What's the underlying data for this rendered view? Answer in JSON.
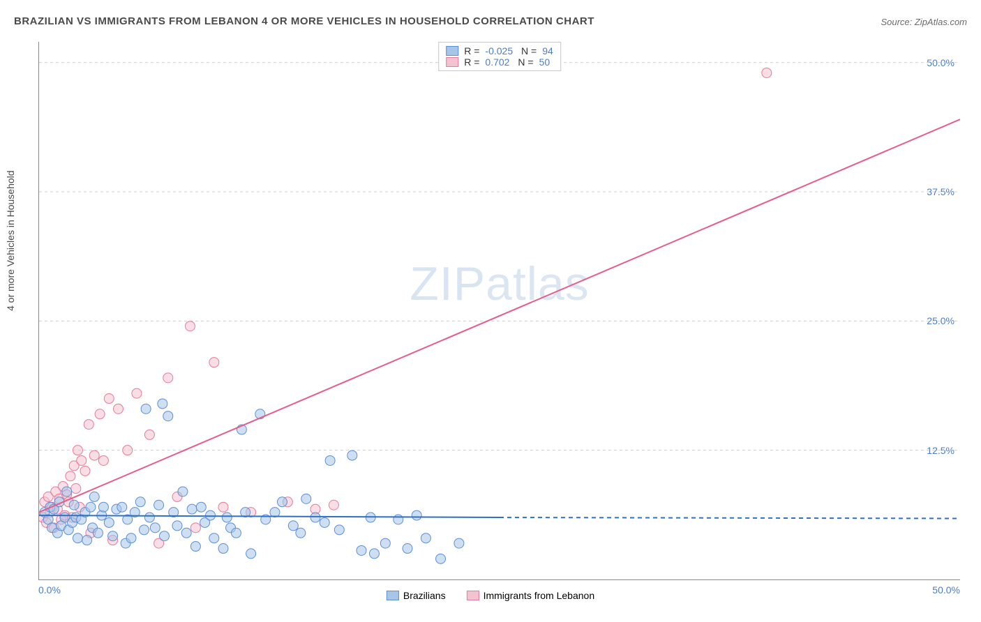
{
  "title": "BRAZILIAN VS IMMIGRANTS FROM LEBANON 4 OR MORE VEHICLES IN HOUSEHOLD CORRELATION CHART",
  "source": "Source: ZipAtlas.com",
  "ylabel": "4 or more Vehicles in Household",
  "watermark_a": "ZIP",
  "watermark_b": "atlas",
  "xlim": [
    0,
    50
  ],
  "ylim": [
    0,
    52
  ],
  "yticks": [
    {
      "v": 12.5,
      "label": "12.5%"
    },
    {
      "v": 25.0,
      "label": "25.0%"
    },
    {
      "v": 37.5,
      "label": "37.5%"
    },
    {
      "v": 50.0,
      "label": "50.0%"
    }
  ],
  "xtick_left": "0.0%",
  "xtick_right": "50.0%",
  "colors": {
    "blue_fill": "#a8c5e8",
    "blue_stroke": "#5b8fd6",
    "blue_line": "#2f6fc4",
    "pink_fill": "#f4c3d0",
    "pink_stroke": "#e67a9b",
    "pink_line": "#e75d87",
    "grid": "#d0d0d0",
    "axis": "#888888",
    "text": "#4a4a4a",
    "value_text": "#4a7ec9"
  },
  "marker_radius": 7,
  "marker_opacity": 0.55,
  "line_width": 2,
  "stats": [
    {
      "swatch": "blue",
      "r": "-0.025",
      "n": "94"
    },
    {
      "swatch": "pink",
      "r": "0.702",
      "n": "50"
    }
  ],
  "legend_bottom": [
    {
      "swatch": "blue",
      "label": "Brazilians"
    },
    {
      "swatch": "pink",
      "label": "Immigrants from Lebanon"
    }
  ],
  "blue_line": {
    "x1": 0,
    "y1": 6.2,
    "x2": 25,
    "y2": 6.0,
    "ext_x2": 50,
    "ext_y2": 5.9
  },
  "pink_line": {
    "x1": 0,
    "y1": 6.5,
    "x2": 50,
    "y2": 44.5
  },
  "blue_points": [
    [
      0.3,
      6.5
    ],
    [
      0.5,
      5.8
    ],
    [
      0.6,
      7.0
    ],
    [
      0.7,
      5.0
    ],
    [
      0.8,
      6.8
    ],
    [
      1.0,
      4.5
    ],
    [
      1.1,
      7.5
    ],
    [
      1.2,
      5.2
    ],
    [
      1.4,
      6.0
    ],
    [
      1.5,
      8.5
    ],
    [
      1.6,
      4.8
    ],
    [
      1.8,
      5.5
    ],
    [
      1.9,
      7.2
    ],
    [
      2.0,
      6.0
    ],
    [
      2.1,
      4.0
    ],
    [
      2.3,
      5.8
    ],
    [
      2.5,
      6.5
    ],
    [
      2.6,
      3.8
    ],
    [
      2.8,
      7.0
    ],
    [
      2.9,
      5.0
    ],
    [
      3.0,
      8.0
    ],
    [
      3.2,
      4.5
    ],
    [
      3.4,
      6.2
    ],
    [
      3.5,
      7.0
    ],
    [
      3.8,
      5.5
    ],
    [
      4.0,
      4.2
    ],
    [
      4.2,
      6.8
    ],
    [
      4.5,
      7.0
    ],
    [
      4.7,
      3.5
    ],
    [
      4.8,
      5.8
    ],
    [
      5.0,
      4.0
    ],
    [
      5.2,
      6.5
    ],
    [
      5.5,
      7.5
    ],
    [
      5.7,
      4.8
    ],
    [
      5.8,
      16.5
    ],
    [
      6.0,
      6.0
    ],
    [
      6.3,
      5.0
    ],
    [
      6.5,
      7.2
    ],
    [
      6.7,
      17.0
    ],
    [
      6.8,
      4.2
    ],
    [
      7.0,
      15.8
    ],
    [
      7.3,
      6.5
    ],
    [
      7.5,
      5.2
    ],
    [
      7.8,
      8.5
    ],
    [
      8.0,
      4.5
    ],
    [
      8.3,
      6.8
    ],
    [
      8.5,
      3.2
    ],
    [
      8.8,
      7.0
    ],
    [
      9.0,
      5.5
    ],
    [
      9.3,
      6.2
    ],
    [
      9.5,
      4.0
    ],
    [
      10.0,
      3.0
    ],
    [
      10.2,
      6.0
    ],
    [
      10.4,
      5.0
    ],
    [
      10.7,
      4.5
    ],
    [
      11.0,
      14.5
    ],
    [
      11.2,
      6.5
    ],
    [
      11.5,
      2.5
    ],
    [
      12.0,
      16.0
    ],
    [
      12.3,
      5.8
    ],
    [
      12.8,
      6.5
    ],
    [
      13.2,
      7.5
    ],
    [
      13.8,
      5.2
    ],
    [
      14.2,
      4.5
    ],
    [
      14.5,
      7.8
    ],
    [
      15.0,
      6.0
    ],
    [
      15.5,
      5.5
    ],
    [
      15.8,
      11.5
    ],
    [
      16.3,
      4.8
    ],
    [
      17.0,
      12.0
    ],
    [
      17.5,
      2.8
    ],
    [
      18.0,
      6.0
    ],
    [
      18.2,
      2.5
    ],
    [
      18.8,
      3.5
    ],
    [
      19.5,
      5.8
    ],
    [
      20.0,
      3.0
    ],
    [
      20.5,
      6.2
    ],
    [
      21.0,
      4.0
    ],
    [
      21.8,
      2.0
    ],
    [
      22.8,
      3.5
    ]
  ],
  "pink_points": [
    [
      0.2,
      6.0
    ],
    [
      0.3,
      7.5
    ],
    [
      0.4,
      5.5
    ],
    [
      0.5,
      8.0
    ],
    [
      0.6,
      6.5
    ],
    [
      0.7,
      7.0
    ],
    [
      0.8,
      5.0
    ],
    [
      0.9,
      8.5
    ],
    [
      1.0,
      6.8
    ],
    [
      1.1,
      7.8
    ],
    [
      1.2,
      5.8
    ],
    [
      1.3,
      9.0
    ],
    [
      1.4,
      6.2
    ],
    [
      1.5,
      8.2
    ],
    [
      1.6,
      7.5
    ],
    [
      1.7,
      10.0
    ],
    [
      1.8,
      6.0
    ],
    [
      1.9,
      11.0
    ],
    [
      2.0,
      8.8
    ],
    [
      2.1,
      12.5
    ],
    [
      2.2,
      7.0
    ],
    [
      2.3,
      11.5
    ],
    [
      2.5,
      10.5
    ],
    [
      2.7,
      15.0
    ],
    [
      2.8,
      4.5
    ],
    [
      3.0,
      12.0
    ],
    [
      3.3,
      16.0
    ],
    [
      3.5,
      11.5
    ],
    [
      3.8,
      17.5
    ],
    [
      4.0,
      3.8
    ],
    [
      4.3,
      16.5
    ],
    [
      4.8,
      12.5
    ],
    [
      5.3,
      18.0
    ],
    [
      6.0,
      14.0
    ],
    [
      6.5,
      3.5
    ],
    [
      7.0,
      19.5
    ],
    [
      7.5,
      8.0
    ],
    [
      8.2,
      24.5
    ],
    [
      8.5,
      5.0
    ],
    [
      9.5,
      21.0
    ],
    [
      10.0,
      7.0
    ],
    [
      11.5,
      6.5
    ],
    [
      13.5,
      7.5
    ],
    [
      15.0,
      6.8
    ],
    [
      16.0,
      7.2
    ],
    [
      39.5,
      49.0
    ]
  ]
}
